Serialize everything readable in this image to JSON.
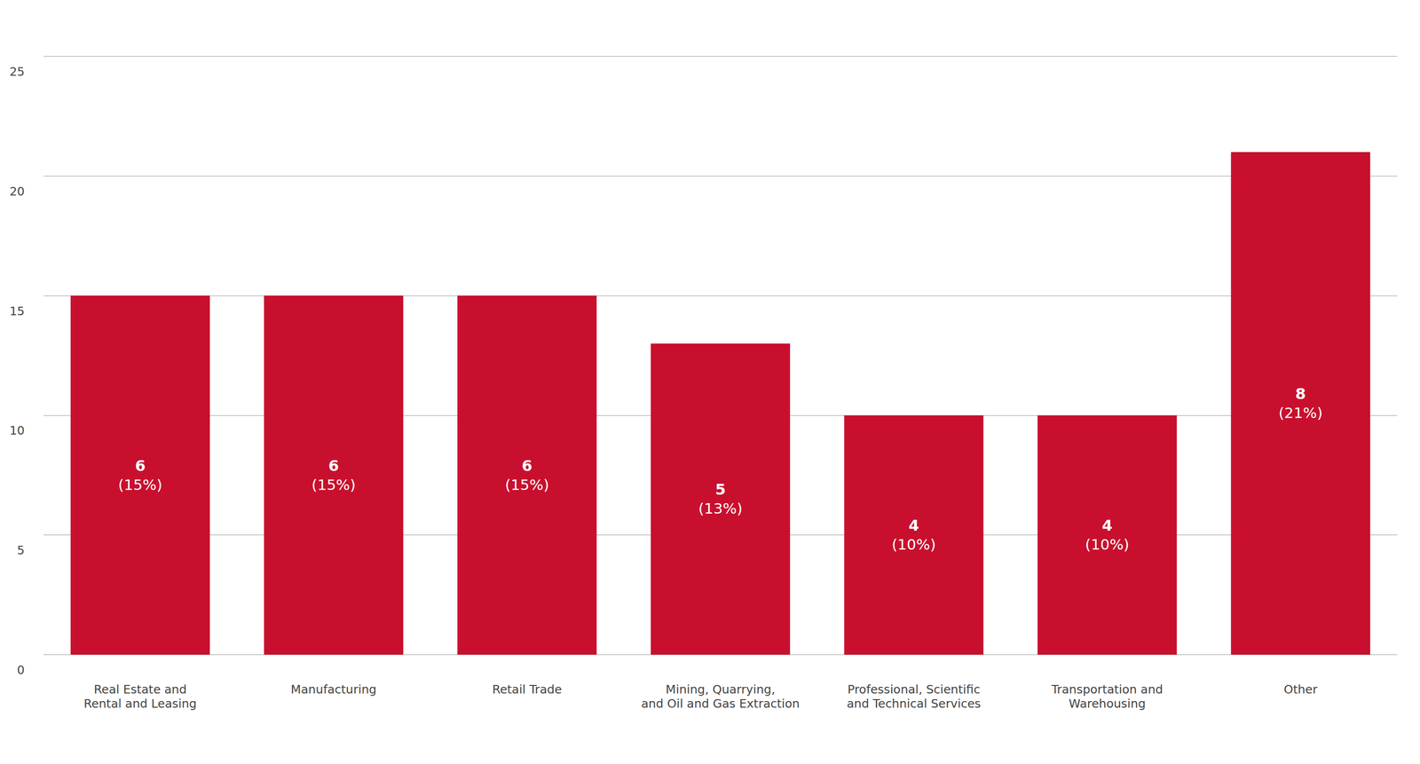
{
  "chart_data": {
    "type": "bar",
    "categories": [
      "Real Estate and\nRental and Leasing",
      "Manufacturing",
      "Retail Trade",
      "Mining, Quarrying,\nand Oil and Gas Extraction",
      "Professional, Scientific\nand Technical Services",
      "Transportation and\nWarehousing",
      "Other"
    ],
    "values": [
      15,
      15,
      15,
      13,
      10,
      10,
      21
    ],
    "counts": [
      6,
      6,
      6,
      5,
      4,
      4,
      8
    ],
    "value_labels": [
      "(15%)",
      "(15%)",
      "(15%)",
      "(13%)",
      "(10%)",
      "(10%)",
      "(21%)"
    ],
    "color": "#c8102e",
    "ylim": [
      0,
      25
    ],
    "yticks": [
      0,
      5,
      10,
      15,
      20,
      25
    ],
    "grid": true,
    "data_labels": true
  }
}
